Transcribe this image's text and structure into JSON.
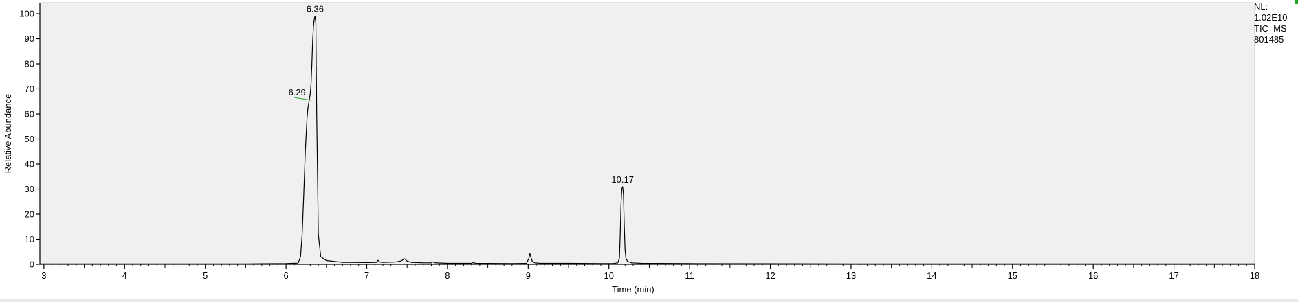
{
  "info": {
    "nl_label": "NL:",
    "nl_value": "1.02E10",
    "scan_filter": "TIC  MS",
    "file_id": "801485"
  },
  "colors": {
    "plot_background": "#f0f0f0",
    "trace": "#000000",
    "peak_marker": "#4caf50",
    "axis": "#000000"
  },
  "chart_data": {
    "type": "line",
    "xlabel": "Time (min)",
    "ylabel": "Relative Abundance",
    "xlim": [
      2.95,
      18.0
    ],
    "ylim": [
      0,
      100
    ],
    "x_ticks": [
      3,
      4,
      5,
      6,
      7,
      8,
      9,
      10,
      11,
      12,
      13,
      14,
      15,
      16,
      17,
      18
    ],
    "y_ticks": [
      0,
      10,
      20,
      30,
      40,
      50,
      60,
      70,
      80,
      90,
      100
    ],
    "grid": false,
    "series": [
      {
        "x": [
          2.95,
          5.5,
          6.0,
          6.15,
          6.18,
          6.2,
          6.22,
          6.24,
          6.26,
          6.27,
          6.29,
          6.3,
          6.31,
          6.32,
          6.33,
          6.34,
          6.35,
          6.36,
          6.37,
          6.38,
          6.4,
          6.43,
          6.5,
          6.7,
          7.0,
          7.12,
          7.14,
          7.16,
          7.2,
          7.35,
          7.42,
          7.47,
          7.5,
          7.55,
          7.7,
          7.8,
          7.82,
          7.85,
          8.0,
          8.3,
          8.32,
          8.35,
          8.8,
          8.98,
          9.01,
          9.02,
          9.03,
          9.05,
          9.08,
          9.15,
          9.5,
          9.9,
          10.05,
          10.11,
          10.13,
          10.14,
          10.15,
          10.16,
          10.17,
          10.18,
          10.19,
          10.2,
          10.21,
          10.23,
          10.28,
          10.4,
          11.0,
          13.0,
          15.0,
          18.0
        ],
        "values": [
          0.2,
          0.2,
          0.3,
          0.5,
          3,
          12,
          28,
          46,
          58,
          62,
          66,
          68,
          72,
          80,
          89,
          95,
          98,
          99,
          96,
          60,
          12,
          3,
          1.5,
          0.8,
          0.7,
          0.8,
          1.6,
          0.9,
          0.8,
          0.9,
          1.3,
          2.2,
          1.3,
          0.8,
          0.6,
          0.6,
          1.0,
          0.6,
          0.4,
          0.4,
          0.7,
          0.4,
          0.3,
          0.4,
          2.5,
          4.5,
          3.2,
          1.2,
          0.6,
          0.4,
          0.4,
          0.3,
          0.3,
          0.6,
          2.5,
          12,
          24,
          30,
          31,
          28,
          16,
          6,
          2.5,
          1.2,
          0.6,
          0.4,
          0.3,
          0.2,
          0.2,
          0.2
        ]
      }
    ],
    "annotations": [
      {
        "text": "6.36",
        "x": 6.36,
        "y": 99
      },
      {
        "text": "6.29",
        "x": 6.29,
        "y": 66
      },
      {
        "text": "10.17",
        "x": 10.17,
        "y": 31
      }
    ]
  }
}
